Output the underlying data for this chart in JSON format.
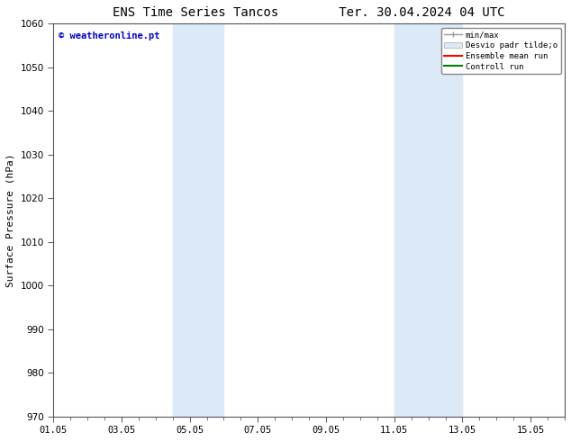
{
  "title_left": "ENS Time Series Tancos",
  "title_right": "Ter. 30.04.2024 04 UTC",
  "ylabel": "Surface Pressure (hPa)",
  "ylim": [
    970,
    1060
  ],
  "yticks": [
    970,
    980,
    990,
    1000,
    1010,
    1020,
    1030,
    1040,
    1050,
    1060
  ],
  "xlim": [
    0.0,
    15.0
  ],
  "xtick_labels": [
    "01.05",
    "03.05",
    "05.05",
    "07.05",
    "09.05",
    "11.05",
    "13.05",
    "15.05"
  ],
  "xtick_positions": [
    0.0,
    2.0,
    4.0,
    6.0,
    8.0,
    10.0,
    12.0,
    14.0
  ],
  "shaded_bands": [
    {
      "x_start": 3.5,
      "x_end": 5.0
    },
    {
      "x_start": 10.0,
      "x_end": 12.0
    }
  ],
  "shaded_color": "#dce9f7",
  "background_color": "#ffffff",
  "watermark_text": "© weatheronline.pt",
  "watermark_color": "#0000cc",
  "legend_labels": [
    "min/max",
    "Desvio padr tilde;o",
    "Ensemble mean run",
    "Controll run"
  ],
  "legend_colors_line": [
    "#999999",
    "#ccddee",
    "#ff0000",
    "#008000"
  ],
  "title_fontsize": 10,
  "axis_label_fontsize": 8,
  "tick_fontsize": 7.5
}
